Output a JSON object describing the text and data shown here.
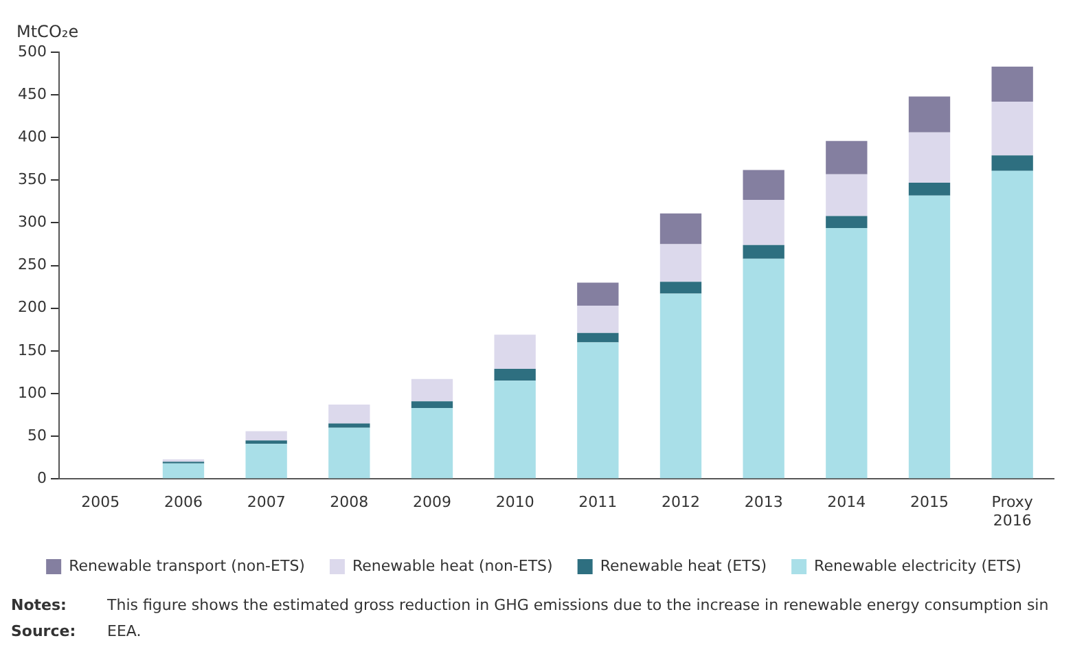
{
  "chart_data": {
    "type": "bar",
    "stacked": true,
    "ylabel": "MtCO₂e",
    "categories": [
      "2005",
      "2006",
      "2007",
      "2008",
      "2009",
      "2010",
      "2011",
      "2012",
      "2013",
      "2014",
      "2015",
      "Proxy 2016"
    ],
    "series": [
      {
        "name": "Renewable electricity (ETS)",
        "color": "#a9dfe8",
        "values": [
          0,
          18,
          41,
          60,
          83,
          115,
          160,
          217,
          258,
          294,
          332,
          361
        ]
      },
      {
        "name": "Renewable heat (ETS)",
        "color": "#2e6f80",
        "values": [
          0,
          2,
          4,
          5,
          8,
          14,
          11,
          14,
          16,
          14,
          15,
          18
        ]
      },
      {
        "name": "Renewable heat (non-ETS)",
        "color": "#dcd9ec",
        "values": [
          0,
          3,
          11,
          22,
          26,
          40,
          32,
          44,
          53,
          49,
          59,
          63
        ]
      },
      {
        "name": "Renewable transport (non-ETS)",
        "color": "#847fa0",
        "values": [
          0,
          0,
          0,
          0,
          0,
          0,
          27,
          36,
          35,
          39,
          42,
          41
        ]
      }
    ],
    "ylim": [
      0,
      500
    ],
    "yticks": [
      0,
      50,
      100,
      150,
      200,
      250,
      300,
      350,
      400,
      450,
      500
    ],
    "grid": false,
    "legend": "bottom",
    "annotations": [
      "Notes:\tThis figure shows the estimated gross reduction in GHG emissions due to the increase in renewable energy consumption sin",
      "Source:\tEEA."
    ]
  }
}
